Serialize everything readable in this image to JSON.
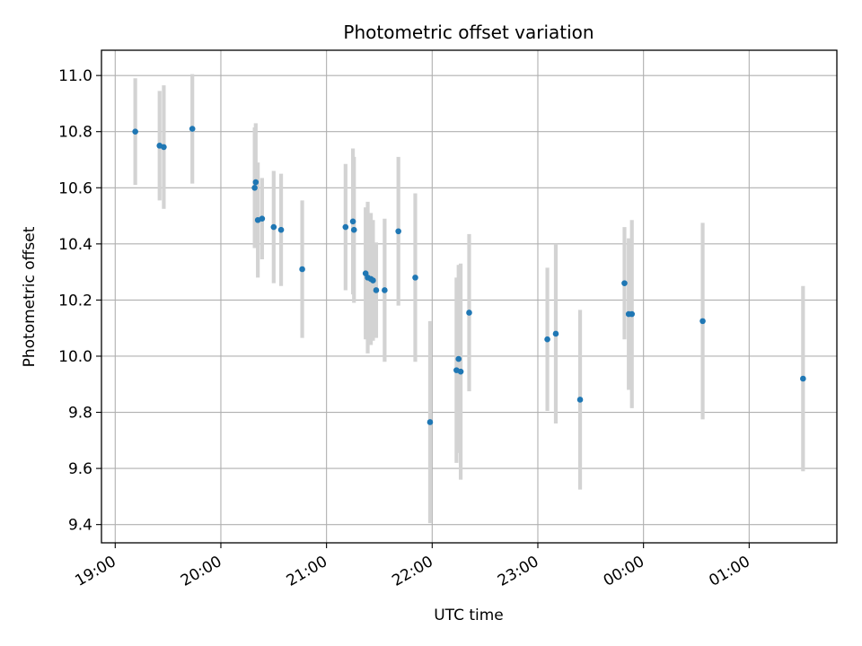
{
  "chart_data": {
    "type": "scatter",
    "title": "Photometric offset variation",
    "xlabel": "UTC time",
    "ylabel": "Photometric offset",
    "grid": true,
    "xlim_hours": [
      18.87,
      25.83
    ],
    "ylim": [
      9.335,
      11.09
    ],
    "x_ticks": [
      {
        "hour": 19,
        "label": "19:00"
      },
      {
        "hour": 20,
        "label": "20:00"
      },
      {
        "hour": 21,
        "label": "21:00"
      },
      {
        "hour": 22,
        "label": "22:00"
      },
      {
        "hour": 23,
        "label": "23:00"
      },
      {
        "hour": 24,
        "label": "00:00"
      },
      {
        "hour": 25,
        "label": "01:00"
      }
    ],
    "y_ticks": [
      {
        "value": 9.4,
        "label": "9.4"
      },
      {
        "value": 9.6,
        "label": "9.6"
      },
      {
        "value": 9.8,
        "label": "9.8"
      },
      {
        "value": 10.0,
        "label": "10.0"
      },
      {
        "value": 10.2,
        "label": "10.2"
      },
      {
        "value": 10.4,
        "label": "10.4"
      },
      {
        "value": 10.6,
        "label": "10.6"
      },
      {
        "value": 10.8,
        "label": "10.8"
      },
      {
        "value": 11.0,
        "label": "11.0"
      }
    ],
    "colors": {
      "point": "#1f77b4",
      "errorbar": "#d3d3d3",
      "grid": "#b0b0b0"
    },
    "points": [
      {
        "t": 19.19,
        "y": 10.8,
        "err": 0.19
      },
      {
        "t": 19.42,
        "y": 10.75,
        "err": 0.195
      },
      {
        "t": 19.46,
        "y": 10.745,
        "err": 0.22
      },
      {
        "t": 19.73,
        "y": 10.81,
        "err": 0.195
      },
      {
        "t": 20.32,
        "y": 10.6,
        "err": 0.215
      },
      {
        "t": 20.33,
        "y": 10.62,
        "err": 0.21
      },
      {
        "t": 20.35,
        "y": 10.485,
        "err": 0.205
      },
      {
        "t": 20.39,
        "y": 10.49,
        "err": 0.145
      },
      {
        "t": 20.5,
        "y": 10.46,
        "err": 0.2
      },
      {
        "t": 20.57,
        "y": 10.45,
        "err": 0.2
      },
      {
        "t": 20.77,
        "y": 10.31,
        "err": 0.245
      },
      {
        "t": 21.18,
        "y": 10.46,
        "err": 0.225
      },
      {
        "t": 21.25,
        "y": 10.48,
        "err": 0.26
      },
      {
        "t": 21.26,
        "y": 10.45,
        "err": 0.26
      },
      {
        "t": 21.37,
        "y": 10.295,
        "err": 0.235
      },
      {
        "t": 21.39,
        "y": 10.28,
        "err": 0.27
      },
      {
        "t": 21.42,
        "y": 10.275,
        "err": 0.235
      },
      {
        "t": 21.44,
        "y": 10.27,
        "err": 0.215
      },
      {
        "t": 21.47,
        "y": 10.235,
        "err": 0.17
      },
      {
        "t": 21.55,
        "y": 10.235,
        "err": 0.255
      },
      {
        "t": 21.68,
        "y": 10.445,
        "err": 0.265
      },
      {
        "t": 21.84,
        "y": 10.28,
        "err": 0.3
      },
      {
        "t": 21.98,
        "y": 9.765,
        "err": 0.36
      },
      {
        "t": 22.23,
        "y": 9.95,
        "err": 0.33
      },
      {
        "t": 22.25,
        "y": 9.99,
        "err": 0.335
      },
      {
        "t": 22.27,
        "y": 9.945,
        "err": 0.385
      },
      {
        "t": 22.35,
        "y": 10.155,
        "err": 0.28
      },
      {
        "t": 23.09,
        "y": 10.06,
        "err": 0.255
      },
      {
        "t": 23.17,
        "y": 10.08,
        "err": 0.32
      },
      {
        "t": 23.4,
        "y": 9.845,
        "err": 0.32
      },
      {
        "t": 23.82,
        "y": 10.26,
        "err": 0.2
      },
      {
        "t": 23.86,
        "y": 10.15,
        "err": 0.27
      },
      {
        "t": 23.89,
        "y": 10.15,
        "err": 0.335
      },
      {
        "t": 24.56,
        "y": 10.125,
        "err": 0.35
      },
      {
        "t": 25.51,
        "y": 9.92,
        "err": 0.33
      }
    ]
  }
}
